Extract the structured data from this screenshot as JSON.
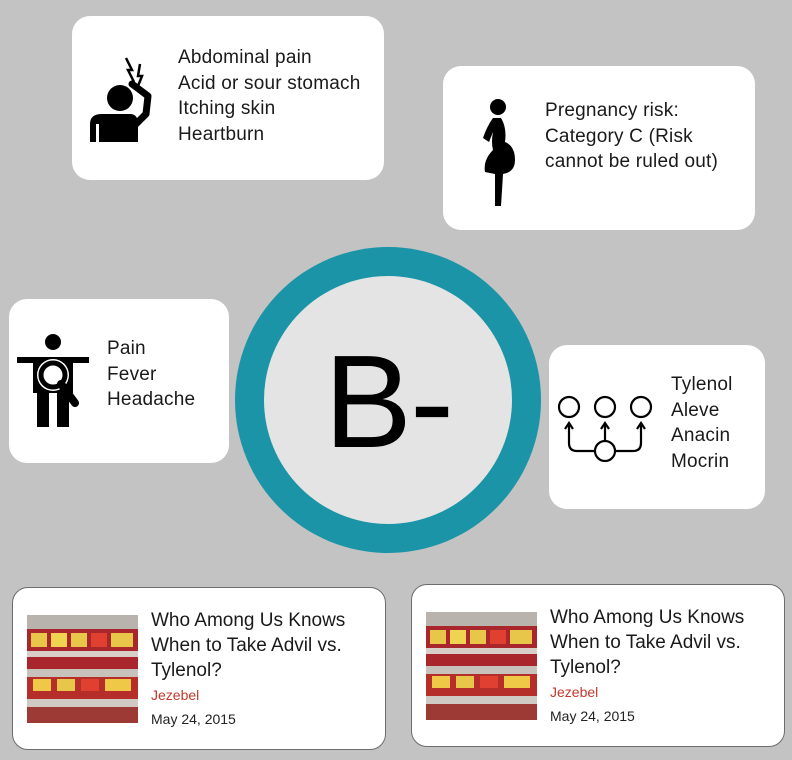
{
  "side_effects": {
    "items": [
      "Abdominal pain",
      "Acid or sour stomach",
      "Itching skin",
      "Heartburn"
    ]
  },
  "pregnancy": {
    "lines": [
      "Pregnancy risk:",
      "Category C (Risk",
      "cannot be ruled out)"
    ]
  },
  "uses": {
    "items": [
      "Pain",
      "Fever",
      "Headache"
    ]
  },
  "grade": {
    "value": "B-",
    "ring_color": "#1a94a6"
  },
  "alternatives": {
    "items": [
      "Tylenol",
      "Aleve",
      "Anacin",
      "Mocrin"
    ]
  },
  "articles": [
    {
      "title": "Who Among Us Knows When to Take Advil vs. Tylenol?",
      "source": "Jezebel",
      "date": "May 24, 2015"
    },
    {
      "title": "Who Among Us Knows When to Take Advil vs. Tylenol?",
      "source": "Jezebel",
      "date": "May 24, 2015"
    }
  ],
  "colors": {
    "background": "#c3c3c3",
    "source": "#c0392b"
  },
  "icons": {
    "side_effects": "head-pain-icon",
    "pregnancy": "pregnant-woman-icon",
    "uses": "body-diagnosis-icon",
    "alternatives": "alternatives-network-icon"
  }
}
